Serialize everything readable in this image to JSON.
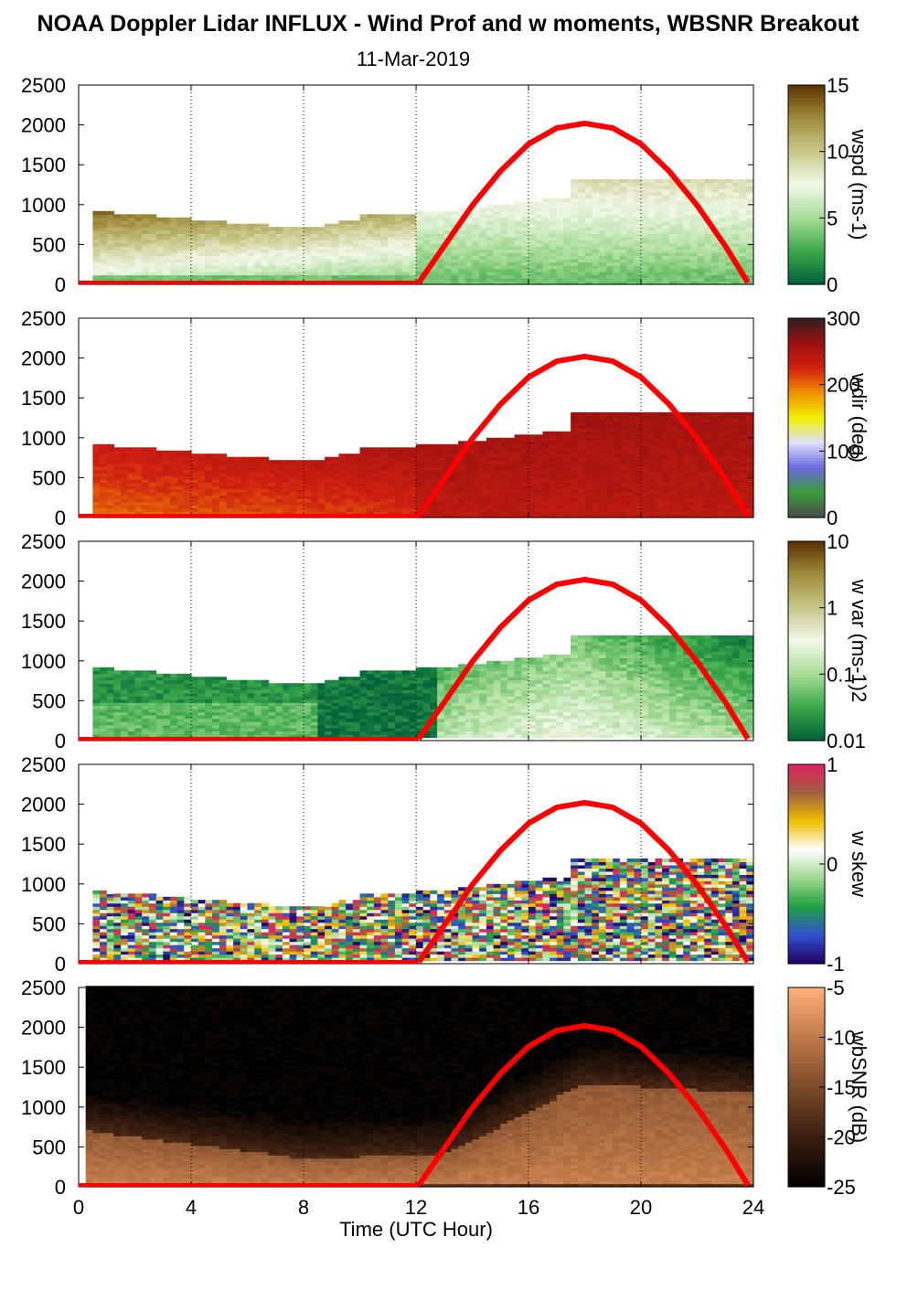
{
  "title": "NOAA Doppler Lidar INFLUX - Wind Prof and w moments, WBSNR Breakout",
  "subtitle": "11-Mar-2019",
  "chart_data": {
    "type": "heatmap",
    "xlabel": "Time (UTC Hour)",
    "xlim": [
      0,
      24
    ],
    "xticks": [
      "0",
      "4",
      "8",
      "12",
      "16",
      "20",
      "24"
    ],
    "ylim": [
      0,
      2500
    ],
    "yticks": [
      "0",
      "500",
      "1000",
      "1500",
      "2000",
      "2500"
    ],
    "grid": "dotted vertical at 4-hour intervals",
    "overlay_curve": {
      "color": "#ff0000",
      "x": [
        12.1,
        13,
        14,
        15,
        16,
        17,
        18,
        19,
        20,
        21,
        22,
        23,
        23.8
      ],
      "y": [
        0,
        480,
        990,
        1420,
        1760,
        1960,
        2020,
        1960,
        1760,
        1420,
        990,
        480,
        0
      ]
    },
    "panels": [
      {
        "id": "wspd",
        "colorbar_label": "wspd (ms-1)",
        "clim": [
          0,
          15
        ],
        "cticks": [
          "0",
          "5",
          "10",
          "15"
        ],
        "colormap": [
          "#00603a",
          "#3aa84a",
          "#a8dc98",
          "#f2f8e8",
          "#c8c88a",
          "#a08c3c",
          "#5a3000"
        ]
      },
      {
        "id": "wdir",
        "colorbar_label": "wdir (deg)",
        "clim": [
          0,
          360
        ],
        "cticks": [
          "0",
          "100",
          "200",
          "300"
        ],
        "colormap": [
          "#4a4a4a",
          "#3a9a3a",
          "#6a6ae0",
          "#e0e0ff",
          "#f0f000",
          "#f09000",
          "#d02010",
          "#9a1010",
          "#302020"
        ]
      },
      {
        "id": "wvar",
        "colorbar_label": "w var (ms-1)2",
        "clim": [
          0.01,
          10
        ],
        "log": true,
        "cticks": [
          "0.01",
          "0.1",
          "1",
          "10"
        ],
        "colormap": [
          "#00603a",
          "#3aa84a",
          "#a8dc98",
          "#f2f8e8",
          "#c8c88a",
          "#a08c3c",
          "#5a3000"
        ]
      },
      {
        "id": "wskew",
        "colorbar_label": "w skew",
        "clim": [
          -1,
          1
        ],
        "cticks": [
          "-1",
          "0",
          "1"
        ],
        "colormap": [
          "#200060",
          "#3050d0",
          "#20a040",
          "#a0d890",
          "#ffffff",
          "#f0c000",
          "#a06040",
          "#e02060"
        ]
      },
      {
        "id": "wbsnr",
        "colorbar_label": "wbSNR (dB)",
        "clim": [
          -25,
          -5
        ],
        "cticks": [
          "-25",
          "-20",
          "-15",
          "-10",
          "-5"
        ],
        "colormap": [
          "#000000",
          "#3a1e10",
          "#7a4a2a",
          "#c07a4a",
          "#ffb07a"
        ]
      }
    ]
  }
}
